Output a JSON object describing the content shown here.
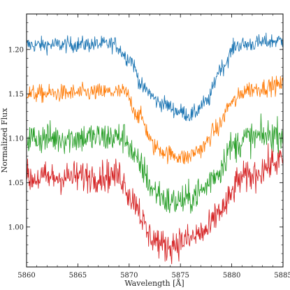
{
  "chart_data": {
    "type": "line",
    "title": "",
    "xlabel": "Wavelength [Å]",
    "ylabel": "Normalized Flux",
    "xlim": [
      5860,
      5885
    ],
    "ylim": [
      0.955,
      1.24
    ],
    "x_ticks": [
      5860,
      5865,
      5870,
      5875,
      5880,
      5885
    ],
    "x_tick_labels": [
      "5860",
      "5865",
      "5870",
      "5875",
      "5880",
      "5885"
    ],
    "y_ticks": [
      1.0,
      1.05,
      1.1,
      1.15,
      1.2
    ],
    "y_tick_labels": [
      "1.00",
      "1.05",
      "1.10",
      "1.15",
      "1.20"
    ],
    "grid": false,
    "legend": "none",
    "x_step": 0.05,
    "series": [
      {
        "color": "#1f77b4",
        "noise": 0.0045,
        "profile": [
          [
            5860,
            1.205
          ],
          [
            5868.5,
            1.206
          ],
          [
            5870,
            1.19
          ],
          [
            5871.5,
            1.155
          ],
          [
            5873,
            1.14
          ],
          [
            5875,
            1.13
          ],
          [
            5876,
            1.126
          ],
          [
            5877.5,
            1.14
          ],
          [
            5879,
            1.18
          ],
          [
            5880.5,
            1.205
          ],
          [
            5885,
            1.21
          ]
        ]
      },
      {
        "color": "#ff7f0e",
        "noise": 0.005,
        "profile": [
          [
            5860,
            1.15
          ],
          [
            5869.5,
            1.152
          ],
          [
            5871,
            1.125
          ],
          [
            5872.5,
            1.09
          ],
          [
            5874,
            1.082
          ],
          [
            5875.5,
            1.078
          ],
          [
            5877,
            1.088
          ],
          [
            5878.5,
            1.11
          ],
          [
            5880,
            1.14
          ],
          [
            5881.5,
            1.155
          ],
          [
            5885,
            1.16
          ]
        ]
      },
      {
        "color": "#2ca02c",
        "noise": 0.009,
        "profile": [
          [
            5860,
            1.1
          ],
          [
            5869.5,
            1.101
          ],
          [
            5871,
            1.07
          ],
          [
            5872.5,
            1.04
          ],
          [
            5874,
            1.028
          ],
          [
            5875.5,
            1.03
          ],
          [
            5877,
            1.04
          ],
          [
            5878.5,
            1.06
          ],
          [
            5880,
            1.09
          ],
          [
            5881.5,
            1.1
          ],
          [
            5885,
            1.105
          ]
        ]
      },
      {
        "color": "#d62728",
        "noise": 0.009,
        "profile": [
          [
            5860,
            1.055
          ],
          [
            5869,
            1.058
          ],
          [
            5870.5,
            1.03
          ],
          [
            5872,
            0.99
          ],
          [
            5873.5,
            0.978
          ],
          [
            5875.5,
            0.985
          ],
          [
            5877.5,
            0.995
          ],
          [
            5879,
            1.02
          ],
          [
            5881,
            1.055
          ],
          [
            5885,
            1.075
          ]
        ]
      }
    ]
  }
}
